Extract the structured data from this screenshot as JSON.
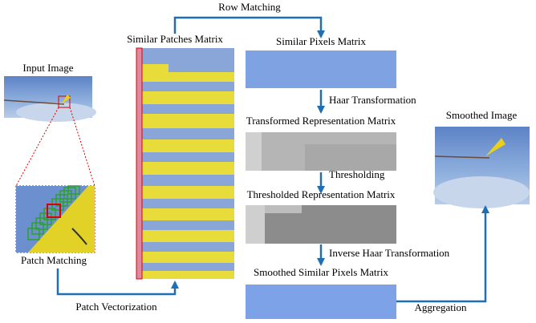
{
  "labels": {
    "row_matching": "Row Matching",
    "similar_patches": "Similar Patches Matrix",
    "similar_pixels": "Similar Pixels Matrix",
    "input_image": "Input Image",
    "haar": "Haar Transformation",
    "transformed": "Transformed Representation Matrix",
    "smoothed_image": "Smoothed Image",
    "thresholding": "Thresholding",
    "thresholded": "Thresholded Representation Matrix",
    "patch_matching": "Patch Matching",
    "inverse_haar": "Inverse Haar Transformation",
    "smoothed_pixels": "Smoothed Similar Pixels Matrix",
    "patch_vectorization": "Patch Vectorization",
    "aggregation": "Aggregation"
  }
}
